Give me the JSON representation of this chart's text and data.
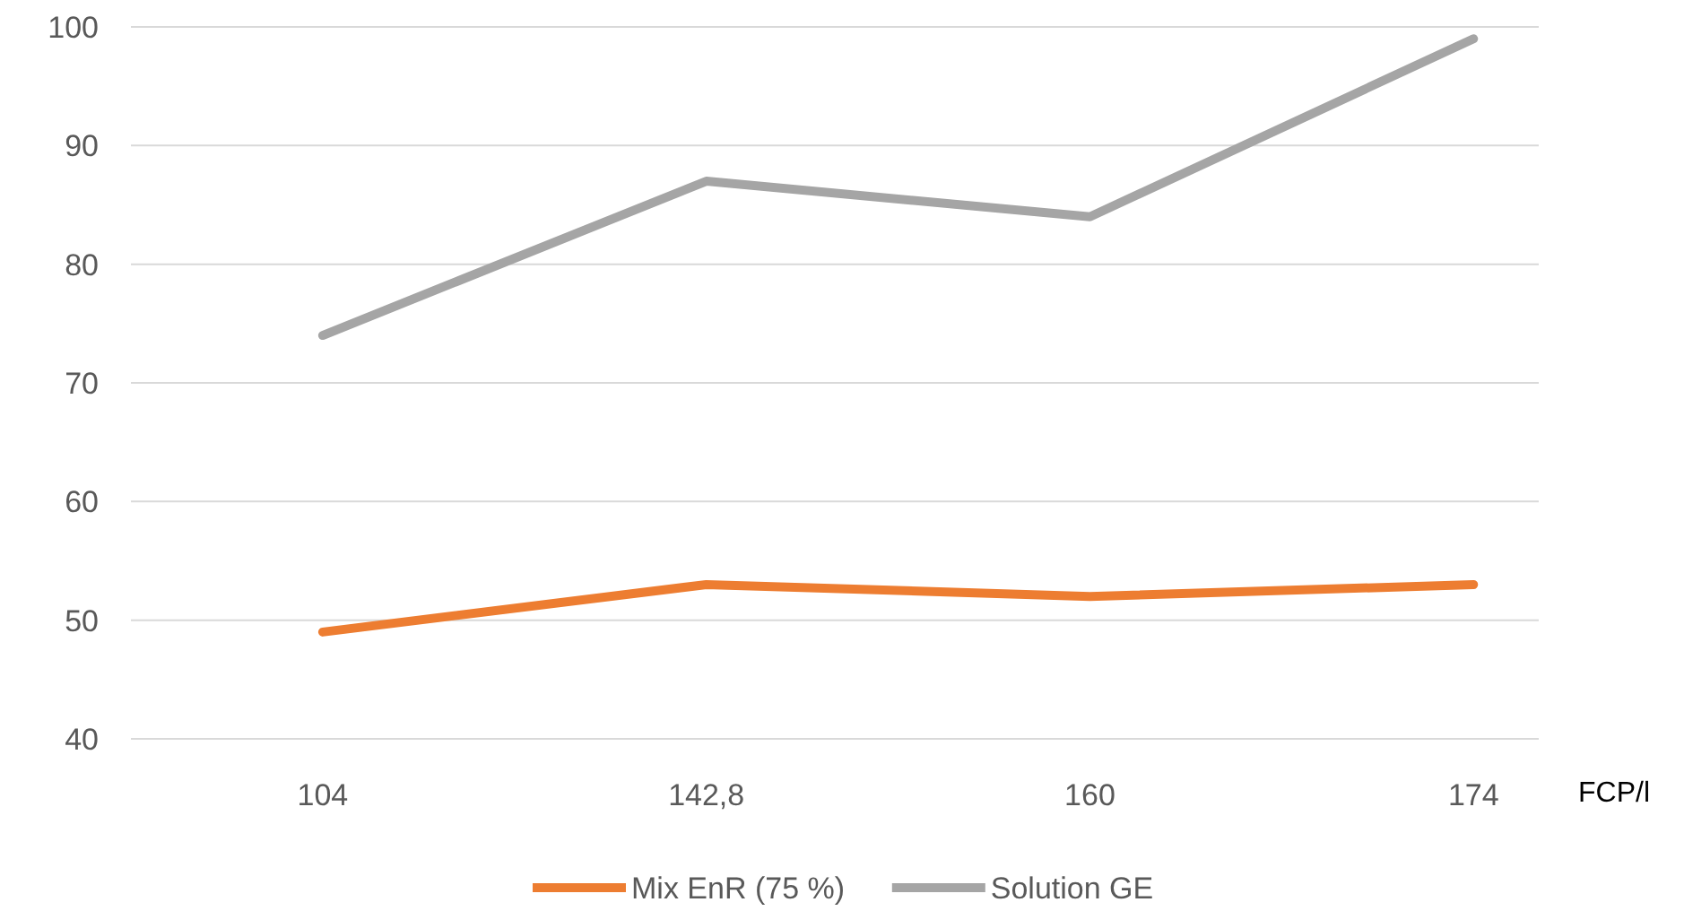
{
  "chart_data": {
    "type": "line",
    "xlabel": "FCP/l",
    "categories": [
      "104",
      "142,8",
      "160",
      "174"
    ],
    "series": [
      {
        "name": "Mix EnR (75 %)",
        "color": "#ed7d31",
        "values": [
          49,
          53,
          52,
          53
        ]
      },
      {
        "name": "Solution GE",
        "color": "#a5a5a5",
        "values": [
          74,
          87,
          84,
          99
        ]
      }
    ],
    "ylim": [
      40,
      100
    ],
    "yticks": [
      40,
      50,
      60,
      70,
      80,
      90,
      100
    ],
    "grid": "y",
    "legend": "bottom",
    "marker": "none",
    "line_style": "solid"
  }
}
